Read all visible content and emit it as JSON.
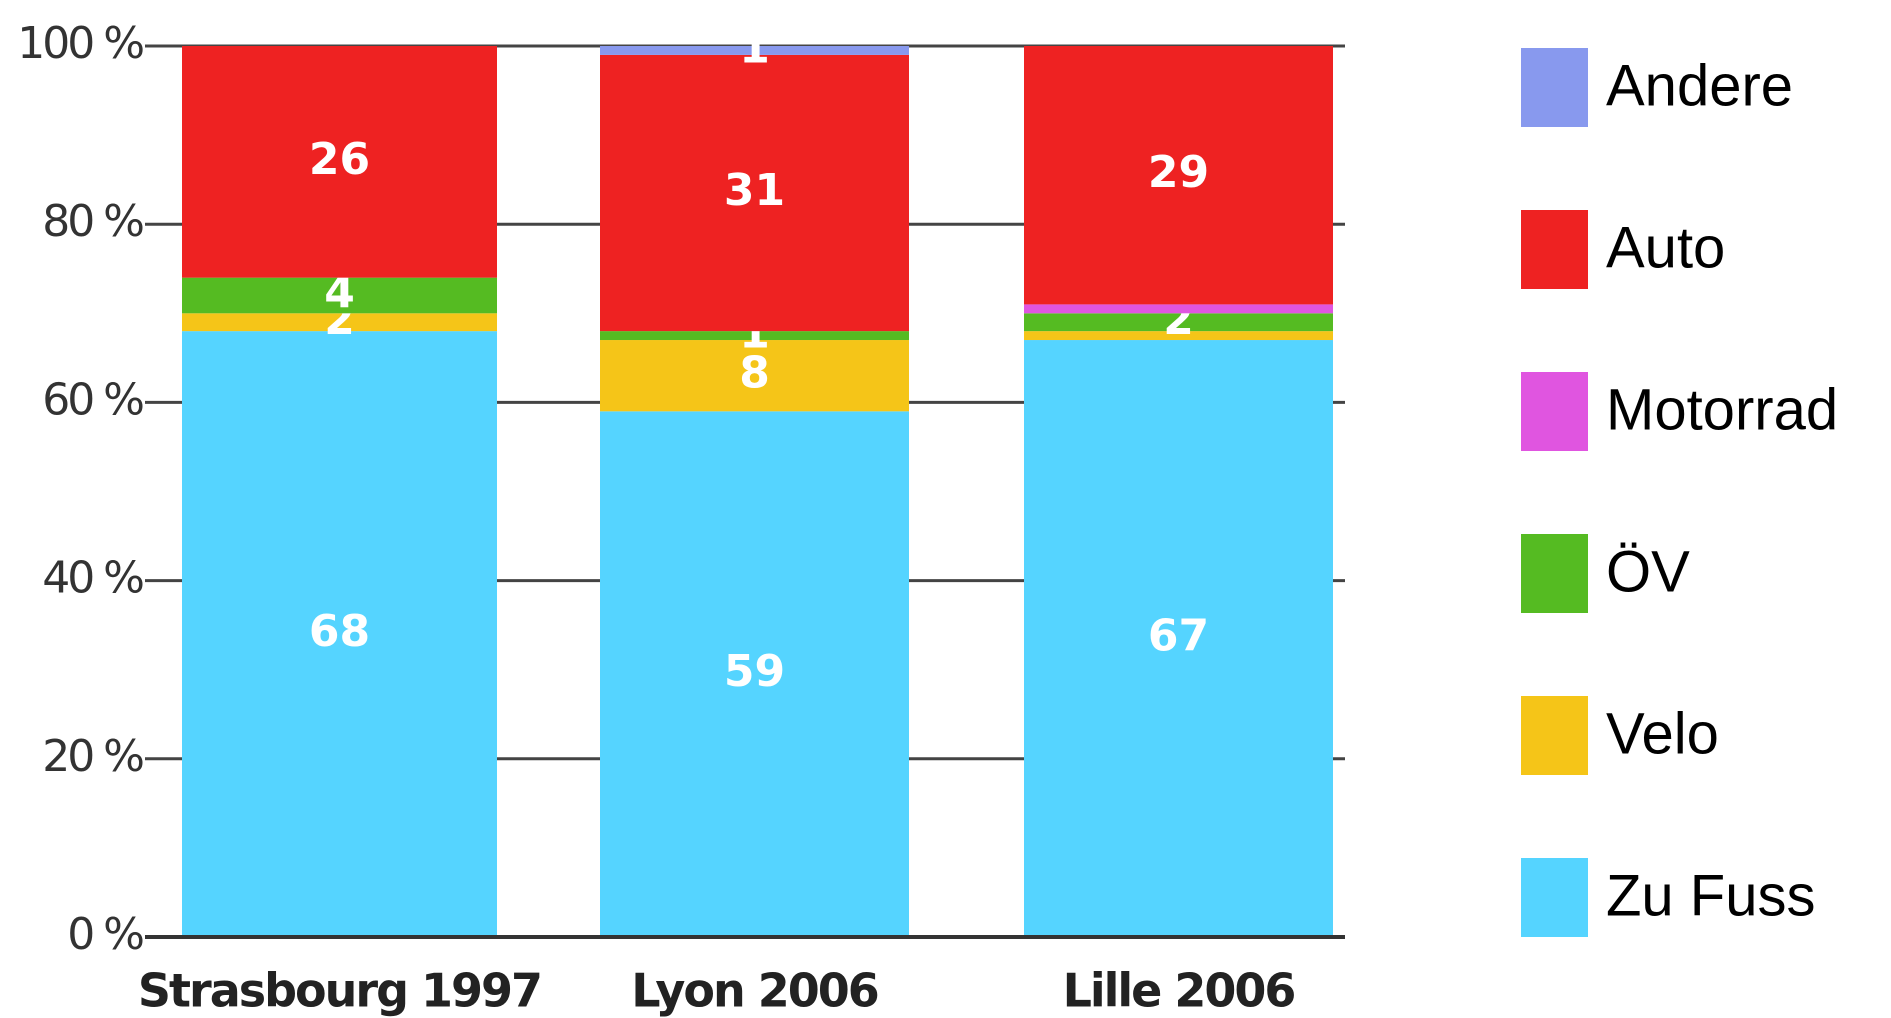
{
  "chart_data": {
    "type": "stacked_bar",
    "categories": [
      "Strasbourg 1997",
      "Lyon 2006",
      "Lille 2006"
    ],
    "series": [
      {
        "name": "Zu Fuss",
        "color": "#55d4ff",
        "values": [
          68,
          59,
          67
        ],
        "value_labels": [
          "68",
          "59",
          "67"
        ]
      },
      {
        "name": "Velo",
        "color": "#f5c518",
        "values": [
          2,
          8,
          1
        ],
        "value_labels": [
          "2",
          "8",
          null
        ]
      },
      {
        "name": "ÖV",
        "color": "#55bb22",
        "values": [
          4,
          1,
          2
        ],
        "value_labels": [
          "4",
          "1",
          "2"
        ]
      },
      {
        "name": "Motorrad",
        "color": "#e055e0",
        "values": [
          0,
          0,
          1
        ],
        "value_labels": [
          null,
          null,
          null
        ]
      },
      {
        "name": "Auto",
        "color": "#ee2222",
        "values": [
          26,
          31,
          29
        ],
        "value_labels": [
          "26",
          "31",
          "29"
        ]
      },
      {
        "name": "Andere",
        "color": "#8899ee",
        "values": [
          0,
          1,
          0
        ],
        "value_labels": [
          null,
          "1",
          null
        ]
      }
    ],
    "ylim": [
      0,
      100
    ],
    "yticks": [
      {
        "value": 0,
        "label": "0 %"
      },
      {
        "value": 20,
        "label": "20 %"
      },
      {
        "value": 40,
        "label": "40 %"
      },
      {
        "value": 60,
        "label": "60 %"
      },
      {
        "value": 80,
        "label": "80 %"
      },
      {
        "value": 100,
        "label": "100 %"
      }
    ],
    "grid": true,
    "legend": "right"
  }
}
